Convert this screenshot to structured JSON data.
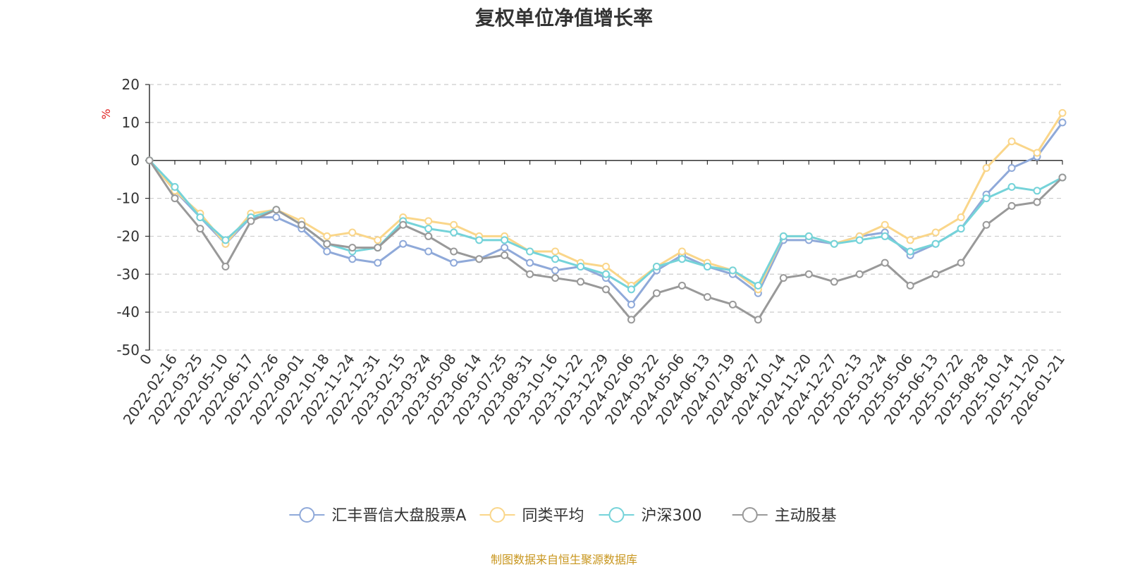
{
  "chart_data": {
    "type": "line",
    "title": "复权单位净值增长率",
    "ylabel": "%",
    "ylim": [
      -50,
      20
    ],
    "yticks": [
      20,
      10,
      0,
      -10,
      -20,
      -30,
      -40,
      -50
    ],
    "grid": true,
    "legend_position": "bottom-center",
    "x_tick_labels": [
      "0",
      "2022-02-16",
      "2022-03-25",
      "2022-05-10",
      "2022-06-17",
      "2022-07-26",
      "2022-09-01",
      "2022-10-18",
      "2022-11-24",
      "2022-12-31",
      "2023-02-15",
      "2023-03-24",
      "2023-05-08",
      "2023-06-14",
      "2023-07-25",
      "2023-08-31",
      "2023-10-16",
      "2023-11-22",
      "2023-12-29",
      "2024-02-06",
      "2024-03-22",
      "2024-05-06",
      "2024-06-13",
      "2024-07-19",
      "2024-08-27",
      "2024-10-14",
      "2024-11-20",
      "2024-12-27",
      "2025-02-13",
      "2025-03-24",
      "2025-05-06",
      "2025-06-13",
      "2025-07-22",
      "2025-08-28",
      "2025-10-14",
      "2025-11-20",
      "2026-01-21"
    ],
    "x": [
      "0",
      "2022-02-16",
      "2022-03-25",
      "2022-05-10",
      "2022-06-17",
      "2022-07-26",
      "2022-09-01",
      "2022-10-18",
      "2022-11-24",
      "2022-12-31",
      "2023-02-15",
      "2023-03-24",
      "2023-05-08",
      "2023-06-14",
      "2023-07-25",
      "2023-08-31",
      "2023-10-16",
      "2023-11-22",
      "2023-12-29",
      "2024-02-06",
      "2024-03-22",
      "2024-05-06",
      "2024-06-13",
      "2024-07-19",
      "2024-08-27",
      "2024-10-14",
      "2024-11-20",
      "2024-12-27",
      "2025-02-13",
      "2025-03-24",
      "2025-05-06",
      "2025-06-13",
      "2025-07-22",
      "2025-08-28",
      "2025-10-14",
      "2025-11-20",
      "2026-01-21"
    ],
    "series": [
      {
        "name": "汇丰晋信大盘股票A",
        "color": "#8fa9d9",
        "values": [
          0,
          -8,
          -15,
          -22,
          -15,
          -15,
          -18,
          -24,
          -26,
          -27,
          -22,
          -24,
          -27,
          -26,
          -23,
          -27,
          -29,
          -28,
          -31,
          -38,
          -29,
          -25,
          -28,
          -30,
          -35,
          -21,
          -21,
          -22,
          -20,
          -19,
          -25,
          -22,
          -18,
          -9,
          -2,
          1,
          10
        ]
      },
      {
        "name": "同类平均",
        "color": "#fad68a",
        "values": [
          0,
          -8,
          -14,
          -22,
          -14,
          -13,
          -16,
          -20,
          -19,
          -21,
          -15,
          -16,
          -17,
          -20,
          -20,
          -24,
          -24,
          -27,
          -28,
          -33,
          -28,
          -24,
          -27,
          -29,
          -34,
          -20,
          -20,
          -22,
          -20,
          -17,
          -21,
          -19,
          -15,
          -2,
          5,
          2,
          12.5
        ]
      },
      {
        "name": "沪深300",
        "color": "#75d3d9",
        "values": [
          0,
          -7,
          -15,
          -21,
          -15,
          -13,
          -17,
          -22,
          -24,
          -23,
          -16,
          -18,
          -19,
          -21,
          -21,
          -24,
          -26,
          -28,
          -30,
          -34,
          -28,
          -26,
          -28,
          -29,
          -33,
          -20,
          -20,
          -22,
          -21,
          -20,
          -24,
          -22,
          -18,
          -10,
          -7,
          -8,
          -4.5
        ]
      },
      {
        "name": "主动股基",
        "color": "#999999",
        "values": [
          0,
          -10,
          -18,
          -28,
          -16,
          -13,
          -17,
          -22,
          -23,
          -23,
          -17,
          -20,
          -24,
          -26,
          -25,
          -30,
          -31,
          -32,
          -34,
          -42,
          -35,
          -33,
          -36,
          -38,
          -42,
          -31,
          -30,
          -32,
          -30,
          -27,
          -33,
          -30,
          -27,
          -17,
          -12,
          -11,
          -4.5
        ]
      }
    ]
  },
  "source_note": "制图数据来自恒生聚源数据库"
}
